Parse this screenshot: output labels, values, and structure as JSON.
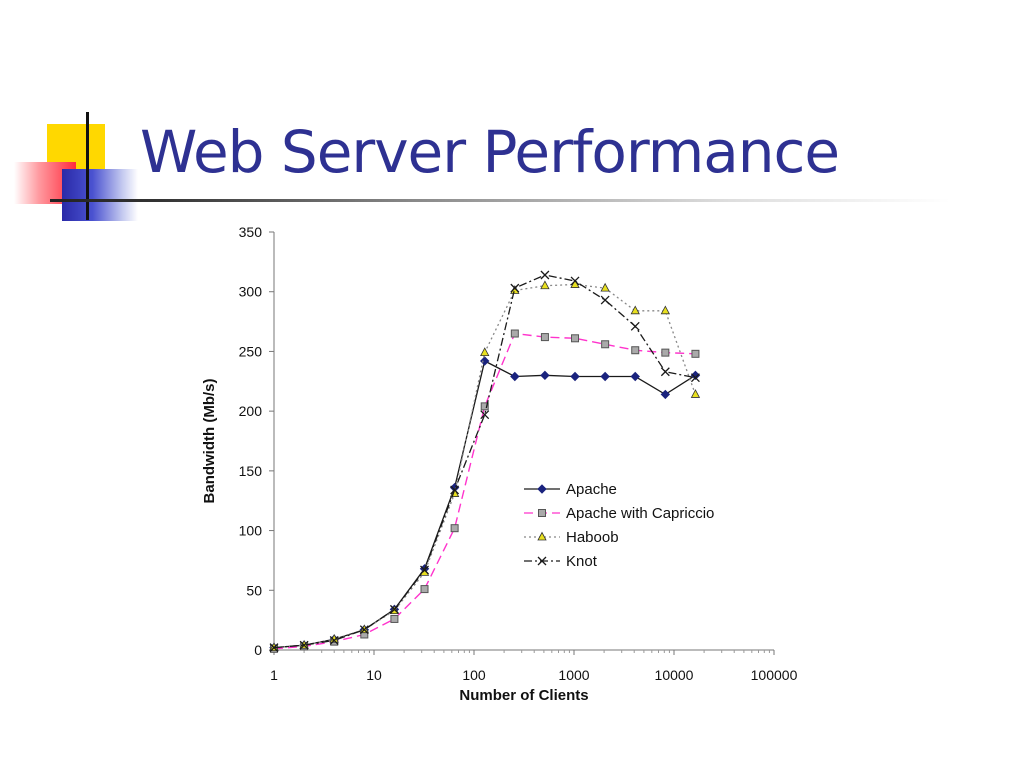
{
  "slide": {
    "title": "Web Server Performance"
  },
  "chart_data": {
    "type": "line",
    "title": "",
    "xlabel": "Number of Clients",
    "ylabel": "Bandwidth (Mb/s)",
    "xscale": "log",
    "xlim": [
      1,
      100000
    ],
    "ylim": [
      0,
      350
    ],
    "xticks": [
      1,
      10,
      100,
      1000,
      10000,
      100000
    ],
    "xtick_labels": [
      "1",
      "10",
      "100",
      "1000",
      "10000",
      "100000"
    ],
    "yticks": [
      0,
      50,
      100,
      150,
      200,
      250,
      300,
      350
    ],
    "ytick_labels": [
      "0",
      "50",
      "100",
      "150",
      "200",
      "250",
      "300",
      "350"
    ],
    "grid": false,
    "legend_position": "center-right",
    "series": [
      {
        "name": "Apache",
        "color": "#1a1a1a",
        "marker_color": "#1a237e",
        "marker": "diamond",
        "dash": "solid",
        "x": [
          1,
          2,
          4,
          8,
          16,
          32,
          64,
          128,
          256,
          512,
          1024,
          2048,
          4096,
          8192,
          16384
        ],
        "y": [
          2,
          4,
          9,
          17,
          34,
          68,
          136,
          242,
          229,
          230,
          229,
          229,
          229,
          214,
          230
        ]
      },
      {
        "name": "Apache with Capriccio",
        "color": "#ff33cc",
        "marker_color": "#aaaaaa",
        "marker": "square",
        "dash": "dashed",
        "x": [
          1,
          2,
          4,
          8,
          16,
          32,
          64,
          128,
          256,
          512,
          1024,
          2048,
          4096,
          8192,
          16384
        ],
        "y": [
          1,
          3,
          7,
          13,
          26,
          51,
          102,
          204,
          265,
          262,
          261,
          256,
          251,
          249,
          248
        ]
      },
      {
        "name": "Haboob",
        "color": "#888888",
        "marker_color": "#e8e020",
        "marker": "triangle",
        "dash": "dotted",
        "x": [
          1,
          2,
          4,
          8,
          16,
          32,
          64,
          128,
          256,
          512,
          1024,
          2048,
          4096,
          8192,
          16384
        ],
        "y": [
          2,
          4,
          9,
          17,
          33,
          65,
          131,
          249,
          301,
          305,
          306,
          303,
          284,
          284,
          214
        ]
      },
      {
        "name": "Knot",
        "color": "#1a1a1a",
        "marker_color": "#1a1a1a",
        "marker": "x",
        "dash": "dashdot",
        "x": [
          1,
          2,
          4,
          8,
          16,
          32,
          64,
          128,
          256,
          512,
          1024,
          2048,
          4096,
          8192,
          16384
        ],
        "y": [
          2,
          4,
          8,
          17,
          34,
          67,
          134,
          197,
          303,
          314,
          309,
          293,
          271,
          233,
          228
        ]
      }
    ]
  }
}
